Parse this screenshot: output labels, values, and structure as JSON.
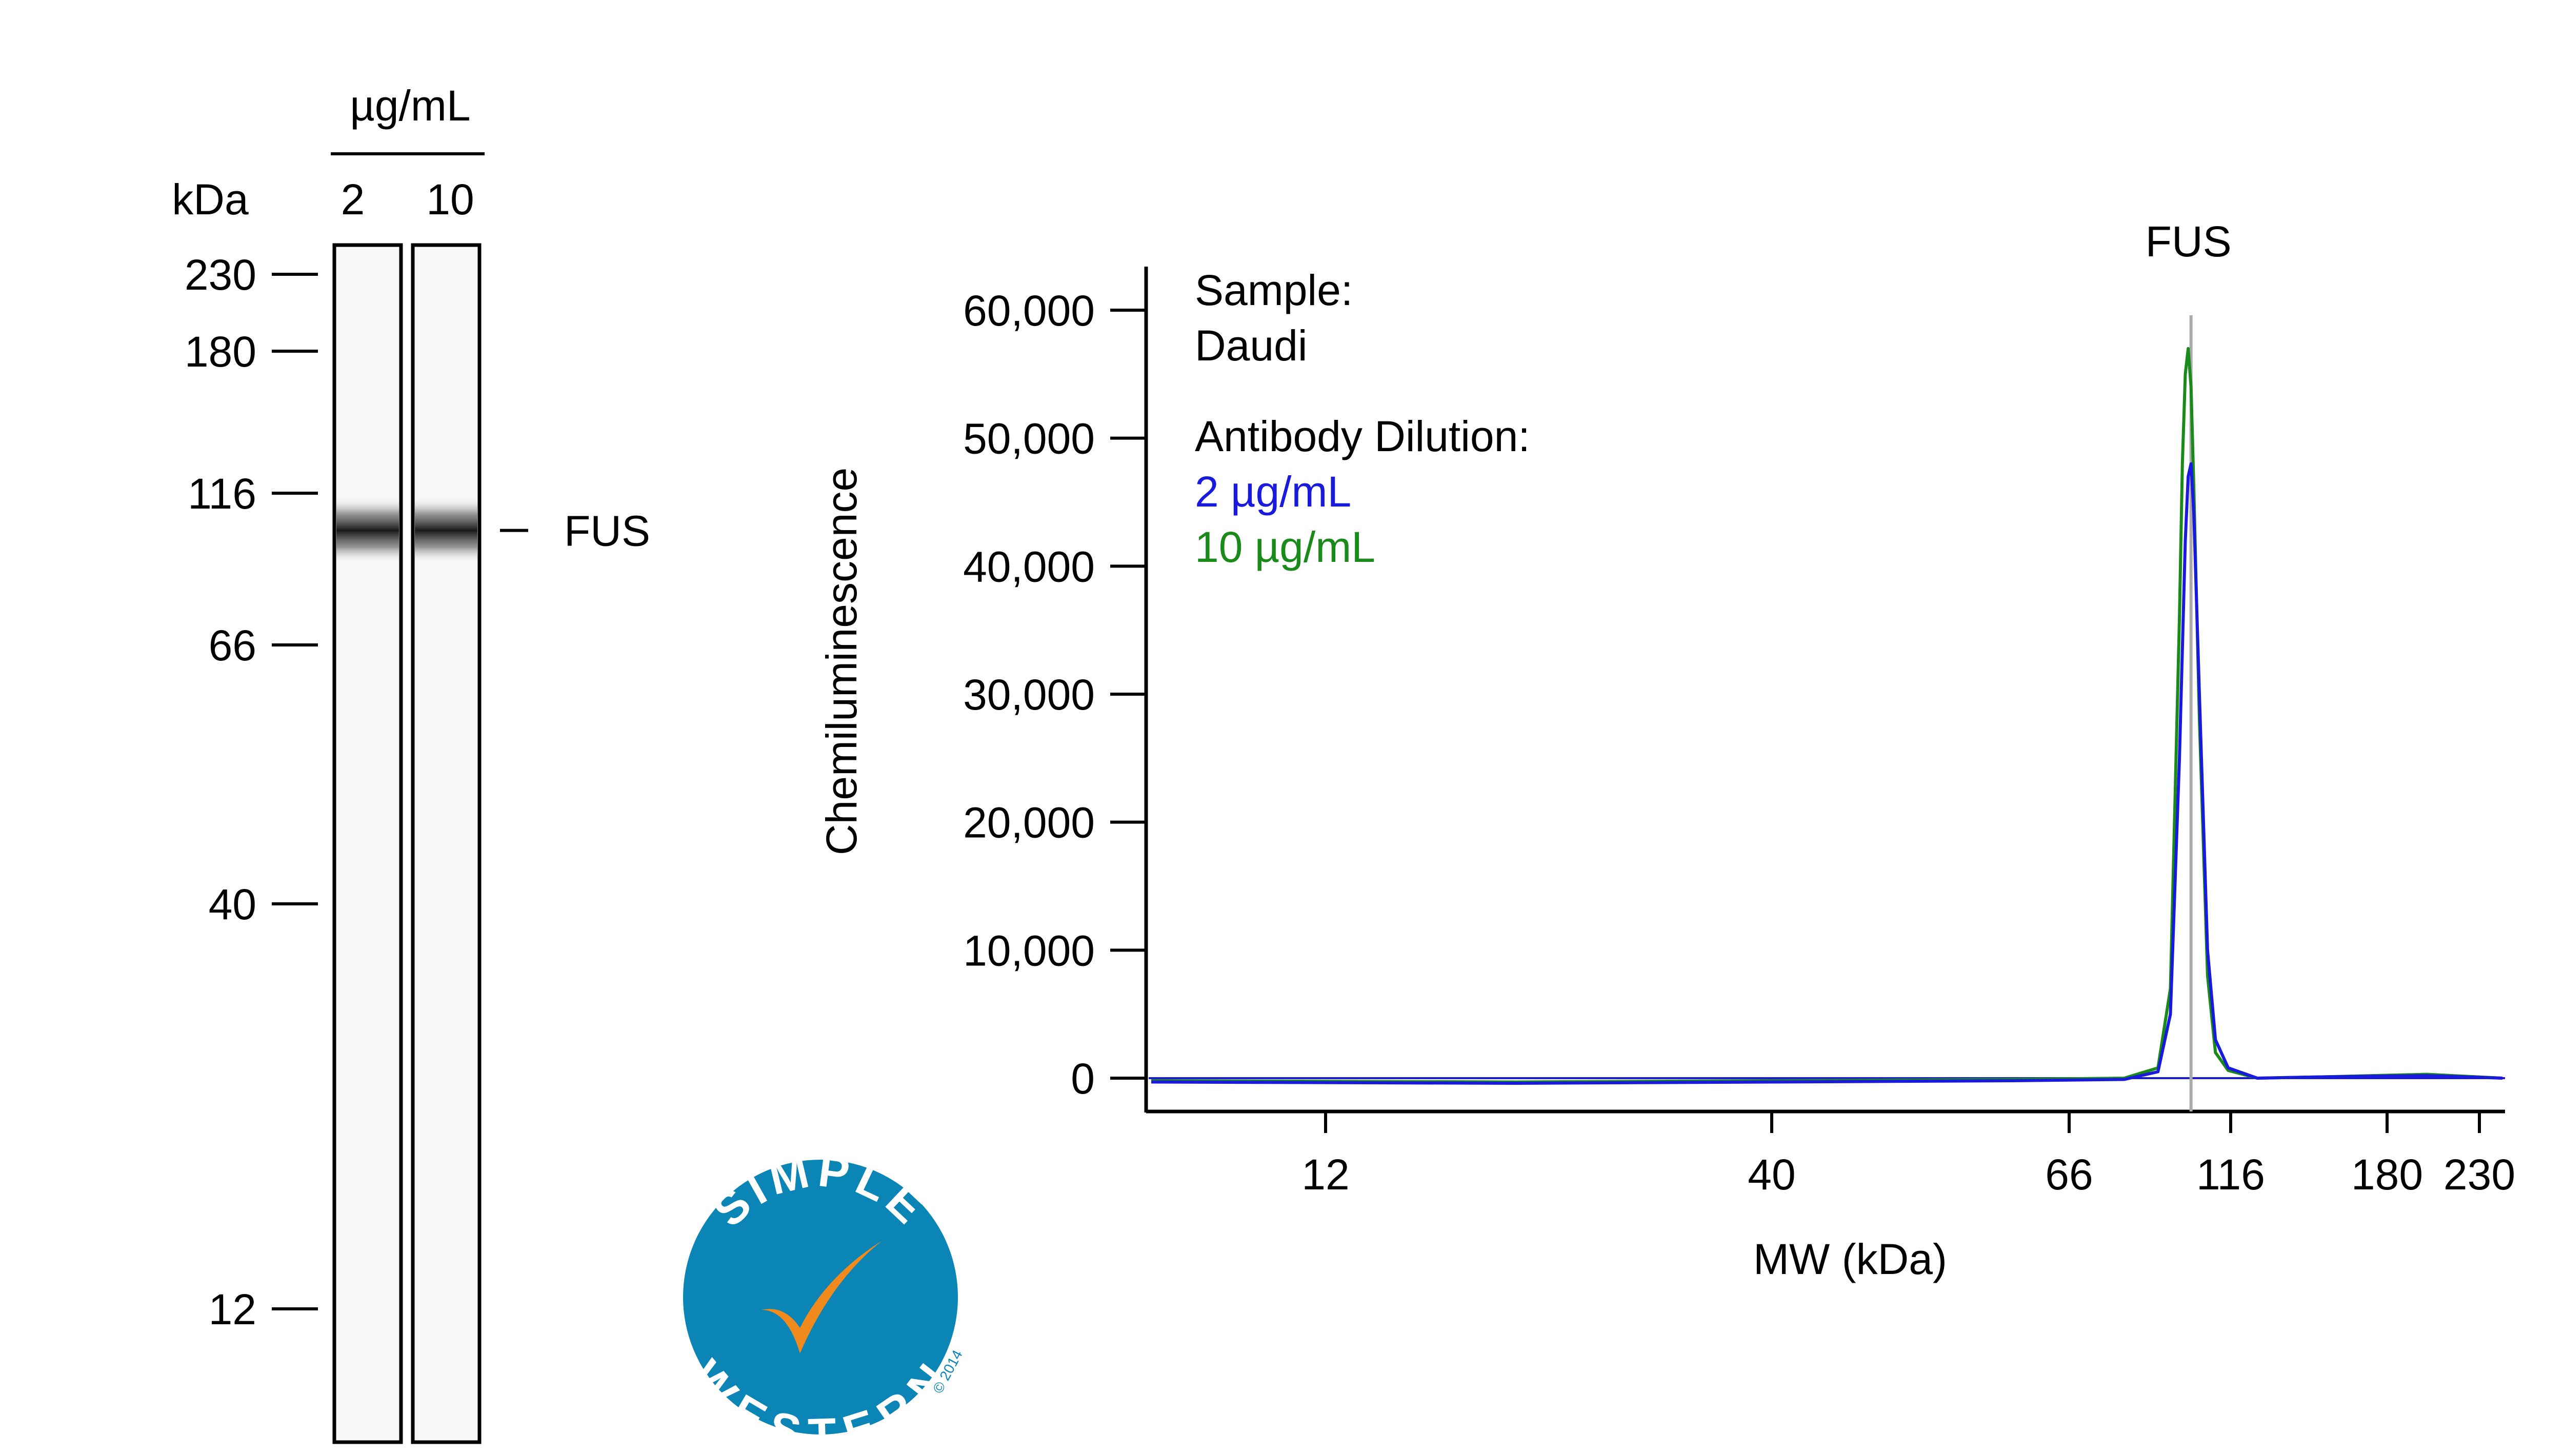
{
  "gel": {
    "concentration_unit": "µg/mL",
    "mw_unit": "kDa",
    "lanes": [
      {
        "label": "2",
        "band_mw": 101
      },
      {
        "label": "10",
        "band_mw": 101
      }
    ],
    "markers": [
      "230",
      "180",
      "116",
      "66",
      "40",
      "12"
    ],
    "band_label": "FUS"
  },
  "chart_data": {
    "type": "line",
    "ylabel": "Chemiluminescence",
    "xlabel": "MW (kDa)",
    "x_scale": "log",
    "x_ticks": [
      "12",
      "40",
      "66",
      "116",
      "180",
      "230"
    ],
    "y_ticks": [
      "0",
      "10,000",
      "20,000",
      "30,000",
      "40,000",
      "50,000",
      "60,000"
    ],
    "ylim": [
      -2500,
      63500
    ],
    "xlim": [
      8,
      240
    ],
    "peak_label": "FUS",
    "peak_marker_x": 101,
    "legend": {
      "title_sample": "Sample:",
      "sample": "Daudi",
      "title_dilution": "Antibody Dilution:"
    },
    "series": [
      {
        "name": "2 µg/mL",
        "color": "#1a1adc",
        "x": [
          8,
          20,
          40,
          60,
          80,
          90,
          94,
          97,
          99,
          100,
          101,
          102,
          104,
          107,
          110,
          115,
          125,
          150,
          200,
          240
        ],
        "y": [
          -300,
          -400,
          -300,
          -200,
          -100,
          500,
          5000,
          25000,
          42000,
          47000,
          48000,
          44000,
          30000,
          10000,
          3000,
          800,
          0,
          100,
          200,
          0
        ]
      },
      {
        "name": "10 µg/mL",
        "color": "#1a8a1a",
        "x": [
          8,
          20,
          40,
          60,
          80,
          90,
          94,
          97,
          98,
          99,
          100,
          101,
          102,
          104,
          107,
          110,
          115,
          125,
          150,
          200,
          240
        ],
        "y": [
          -200,
          -300,
          -200,
          -100,
          0,
          800,
          7000,
          36000,
          48000,
          55000,
          57000,
          54000,
          46000,
          28000,
          8000,
          2000,
          600,
          0,
          100,
          300,
          0
        ]
      }
    ]
  },
  "logo": {
    "top_text": "SIMPLE",
    "bottom_text": "WESTERN",
    "copyright": "© 2014",
    "color": "#0b84b6",
    "check_color": "#f08a1c"
  }
}
